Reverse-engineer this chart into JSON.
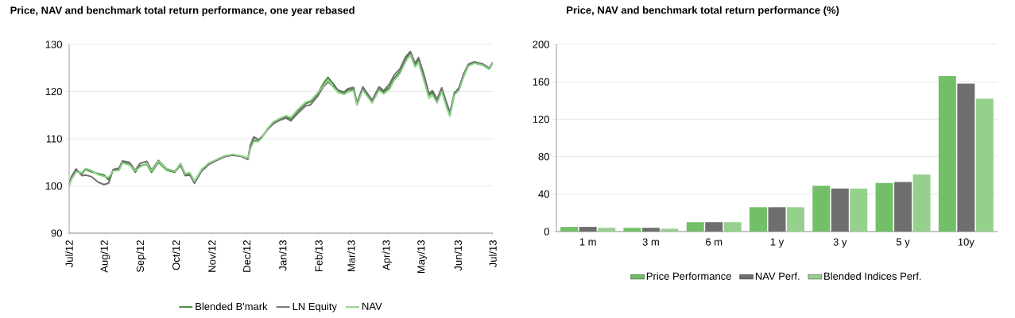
{
  "chart_data": [
    {
      "type": "line",
      "title": "Price, NAV and benchmark total return performance, one year rebased",
      "x": [
        "2012-07-01",
        "2012-07-03",
        "2012-07-07",
        "2012-07-12",
        "2012-07-15",
        "2012-07-20",
        "2012-07-26",
        "2012-07-31",
        "2012-08-04",
        "2012-08-08",
        "2012-08-13",
        "2012-08-16",
        "2012-08-22",
        "2012-08-27",
        "2012-08-31",
        "2012-09-06",
        "2012-09-10",
        "2012-09-16",
        "2012-09-23",
        "2012-09-30",
        "2012-10-05",
        "2012-10-09",
        "2012-10-13",
        "2012-10-17",
        "2012-10-23",
        "2012-10-29",
        "2012-11-05",
        "2012-11-12",
        "2012-11-19",
        "2012-11-26",
        "2012-12-02",
        "2012-12-04",
        "2012-12-07",
        "2012-12-11",
        "2012-12-14",
        "2012-12-19",
        "2012-12-24",
        "2012-12-30",
        "2013-01-04",
        "2013-01-08",
        "2013-01-14",
        "2013-01-21",
        "2013-01-25",
        "2013-01-31",
        "2013-02-05",
        "2013-02-09",
        "2013-02-14",
        "2013-02-18",
        "2013-02-23",
        "2013-02-26",
        "2013-03-03",
        "2013-03-06",
        "2013-03-11",
        "2013-03-19",
        "2013-03-25",
        "2013-03-29",
        "2013-04-03",
        "2013-04-07",
        "2013-04-12",
        "2013-04-17",
        "2013-04-21",
        "2013-04-25",
        "2013-04-28",
        "2013-05-02",
        "2013-05-07",
        "2013-05-10",
        "2013-05-14",
        "2013-05-18",
        "2013-05-22",
        "2013-05-25",
        "2013-05-29",
        "2013-06-02",
        "2013-06-06",
        "2013-06-10",
        "2013-06-15",
        "2013-06-22",
        "2013-06-28",
        "2013-07-01"
      ],
      "series": [
        {
          "name": "Blended B'mark",
          "color": "#3a8a2e",
          "values": [
            100.2,
            101.6,
            103.3,
            102.6,
            103.5,
            103.0,
            102.6,
            102.3,
            101.3,
            103.4,
            103.5,
            105.1,
            104.6,
            102.9,
            104.3,
            104.6,
            102.9,
            105.0,
            103.4,
            102.9,
            104.6,
            102.4,
            102.5,
            100.7,
            103.3,
            104.6,
            105.5,
            106.3,
            106.6,
            106.3,
            105.8,
            108.0,
            109.7,
            109.5,
            110.3,
            112.0,
            113.4,
            114.2,
            114.7,
            114.2,
            115.9,
            117.5,
            117.8,
            119.5,
            121.7,
            123.0,
            121.5,
            120.1,
            119.7,
            120.3,
            120.6,
            117.3,
            120.6,
            117.8,
            120.6,
            119.9,
            120.9,
            122.8,
            124.2,
            127.0,
            128.2,
            125.6,
            126.8,
            123.7,
            119.2,
            119.8,
            118.1,
            120.6,
            117.5,
            115.0,
            119.8,
            120.6,
            123.4,
            125.6,
            126.2,
            125.8,
            124.8,
            126.2
          ]
        },
        {
          "name": "LN Equity",
          "color": "#707070",
          "values": [
            100.2,
            102.0,
            103.6,
            102.2,
            102.3,
            102.0,
            100.8,
            100.3,
            100.6,
            103.5,
            103.8,
            105.3,
            105.0,
            103.3,
            104.8,
            105.2,
            103.4,
            105.4,
            103.6,
            103.1,
            104.4,
            102.2,
            102.3,
            100.6,
            103.1,
            104.5,
            105.4,
            106.2,
            106.5,
            106.3,
            105.6,
            108.5,
            110.4,
            109.8,
            110.4,
            112.0,
            113.2,
            114.0,
            114.4,
            113.8,
            115.4,
            117.0,
            117.2,
            119.0,
            121.0,
            122.0,
            121.0,
            120.3,
            119.9,
            120.6,
            120.9,
            117.6,
            121.0,
            118.2,
            121.0,
            120.2,
            121.6,
            123.5,
            124.8,
            127.4,
            128.5,
            126.0,
            127.2,
            124.2,
            119.6,
            120.2,
            118.4,
            120.8,
            117.8,
            115.6,
            119.6,
            120.9,
            123.8,
            125.8,
            126.3,
            125.9,
            125.0,
            126.1
          ]
        },
        {
          "name": "NAV",
          "color": "#8fd18a",
          "values": [
            100.0,
            101.4,
            103.0,
            102.8,
            103.7,
            103.3,
            102.4,
            102.0,
            101.8,
            103.2,
            103.3,
            104.9,
            104.4,
            103.2,
            104.0,
            104.8,
            103.2,
            105.2,
            103.6,
            103.1,
            104.8,
            102.6,
            102.8,
            101.0,
            103.5,
            104.8,
            105.6,
            106.4,
            106.7,
            106.4,
            105.9,
            107.8,
            109.4,
            109.4,
            110.2,
            112.2,
            113.6,
            114.4,
            114.9,
            114.5,
            116.2,
            117.8,
            118.1,
            119.7,
            121.2,
            122.4,
            120.8,
            119.8,
            119.4,
            119.9,
            120.2,
            117.1,
            120.3,
            117.6,
            120.3,
            119.5,
            120.5,
            122.4,
            123.8,
            126.4,
            127.8,
            125.2,
            126.2,
            122.9,
            118.6,
            119.3,
            117.6,
            120.0,
            116.8,
            114.8,
            119.3,
            120.3,
            123.2,
            125.4,
            126.0,
            125.6,
            124.7,
            126.0
          ]
        }
      ],
      "xlim": [
        "2012-07-01",
        "2013-07-01"
      ],
      "xticks": [
        {
          "value": "2012-07-01",
          "label": "Jul/12"
        },
        {
          "value": "2012-08-01",
          "label": "Aug/12"
        },
        {
          "value": "2012-09-01",
          "label": "Sep/12"
        },
        {
          "value": "2012-10-01",
          "label": "Oct/12"
        },
        {
          "value": "2012-11-01",
          "label": "Nov/12"
        },
        {
          "value": "2012-12-01",
          "label": "Dec/12"
        },
        {
          "value": "2013-01-01",
          "label": "Jan/13"
        },
        {
          "value": "2013-02-01",
          "label": "Feb/13"
        },
        {
          "value": "2013-03-01",
          "label": "Mar/13"
        },
        {
          "value": "2013-04-01",
          "label": "Apr/13"
        },
        {
          "value": "2013-05-01",
          "label": "May/13"
        },
        {
          "value": "2013-06-01",
          "label": "Jun/13"
        },
        {
          "value": "2013-07-01",
          "label": "Jul/13"
        }
      ],
      "ylim": [
        90,
        130
      ],
      "yticks": [
        90,
        100,
        110,
        120,
        130
      ],
      "grid": "y",
      "legend": "bottom"
    },
    {
      "type": "bar",
      "title": "Price, NAV and benchmark total return performance (%)",
      "categories": [
        "1 m",
        "3 m",
        "6 m",
        "1 y",
        "3 y",
        "5 y",
        "10y"
      ],
      "series": [
        {
          "name": "Price Performance",
          "color": "#72bf67",
          "values": [
            5,
            4,
            10,
            26,
            49,
            52,
            166
          ]
        },
        {
          "name": "NAV Perf.",
          "color": "#6e6e6e",
          "values": [
            5,
            4,
            10,
            26,
            46,
            53,
            158
          ]
        },
        {
          "name": "Blended Indices Perf.",
          "color": "#95d18c",
          "values": [
            4,
            3,
            10,
            26,
            46,
            61,
            142
          ]
        }
      ],
      "ylim": [
        0,
        200
      ],
      "yticks": [
        0,
        40,
        80,
        120,
        160,
        200
      ],
      "grid": "y",
      "legend": "bottom"
    }
  ]
}
